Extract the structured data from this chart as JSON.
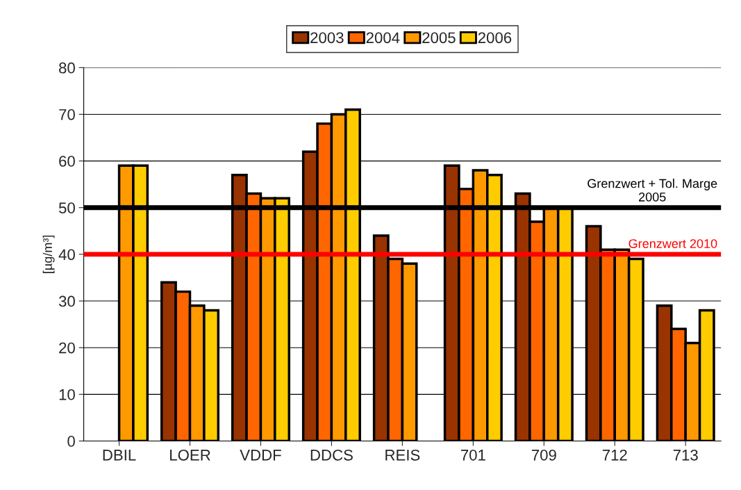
{
  "chart_data": {
    "type": "bar",
    "ylabel": "[µg/m³]",
    "categories": [
      "DBIL",
      "LOER",
      "VDDF",
      "DDCS",
      "REIS",
      "701",
      "709",
      "712",
      "713"
    ],
    "series": [
      {
        "name": "2003",
        "color": "#993300",
        "values": [
          null,
          34,
          57,
          62,
          44,
          59,
          53,
          46,
          29
        ]
      },
      {
        "name": "2004",
        "color": "#ff6600",
        "values": [
          null,
          32,
          53,
          68,
          39,
          54,
          47,
          41,
          24
        ]
      },
      {
        "name": "2005",
        "color": "#ff9900",
        "values": [
          59,
          29,
          52,
          70,
          38,
          58,
          50,
          41,
          21
        ]
      },
      {
        "name": "2006",
        "color": "#ffcc00",
        "values": [
          59,
          28,
          52,
          71,
          null,
          57,
          50,
          39,
          28
        ]
      }
    ],
    "ylim": [
      0,
      80
    ],
    "yticks": [
      0,
      10,
      20,
      30,
      40,
      50,
      60,
      70,
      80
    ],
    "grid": "y",
    "legend": "top",
    "ref_lines": [
      {
        "axis": "y",
        "value": 50,
        "label": "Grenzwert + Tol. Marge\n2005",
        "color": "#000000"
      },
      {
        "axis": "y",
        "value": 40,
        "label": "Grenzwert 2010",
        "color": "#ff0000"
      }
    ]
  }
}
